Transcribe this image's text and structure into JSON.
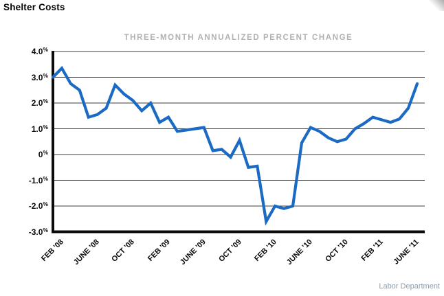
{
  "page": {
    "title": "Shelter Costs",
    "source": "Labor Department"
  },
  "chart_data": {
    "type": "line",
    "title": "THREE-MONTH ANNUALIZED PERCENT CHANGE",
    "x": [
      "Feb '08",
      "Mar '08",
      "Apr '08",
      "May '08",
      "Jun '08",
      "Jul '08",
      "Aug '08",
      "Sep '08",
      "Oct '08",
      "Nov '08",
      "Dec '08",
      "Jan '09",
      "Feb '09",
      "Mar '09",
      "Apr '09",
      "May '09",
      "Jun '09",
      "Jul '09",
      "Aug '09",
      "Sep '09",
      "Oct '09",
      "Nov '09",
      "Dec '09",
      "Jan '10",
      "Feb '10",
      "Mar '10",
      "Apr '10",
      "May '10",
      "Jun '10",
      "Jul '10",
      "Aug '10",
      "Sep '10",
      "Oct '10",
      "Nov '10",
      "Dec '10",
      "Jan '11",
      "Feb '11",
      "Mar '11",
      "Apr '11",
      "May '11",
      "Jun '11",
      "Jul '11"
    ],
    "values": [
      3.0,
      3.35,
      2.75,
      2.5,
      1.45,
      1.55,
      1.8,
      2.7,
      2.35,
      2.1,
      1.7,
      2.0,
      1.25,
      1.45,
      0.9,
      0.95,
      1.0,
      1.05,
      0.15,
      0.2,
      -0.1,
      0.55,
      -0.5,
      -0.45,
      -2.6,
      -2.0,
      -2.1,
      -2.0,
      0.45,
      1.05,
      0.9,
      0.65,
      0.5,
      0.6,
      1.0,
      1.2,
      1.45,
      1.35,
      1.25,
      1.38,
      1.8,
      2.75
    ],
    "x_tick_labels": [
      "FEB '08",
      "JUNE '08",
      "OCT '08",
      "FEB '09",
      "JUNE '09",
      "OCT '09",
      "FEB '10",
      "JUNE '10",
      "OCT '10",
      "FEB '11",
      "JUNE '11"
    ],
    "x_tick_indices": [
      0,
      4,
      8,
      12,
      16,
      20,
      24,
      28,
      32,
      36,
      40
    ],
    "y_ticks": [
      {
        "value": 4,
        "label": "4.0"
      },
      {
        "value": 3,
        "label": "3.0"
      },
      {
        "value": 2,
        "label": "2.0"
      },
      {
        "value": 1,
        "label": "1.0"
      },
      {
        "value": 0,
        "label": "0"
      },
      {
        "value": -1,
        "label": "-1.0"
      },
      {
        "value": -2,
        "label": "-2.0"
      },
      {
        "value": -3,
        "label": "-3.0"
      }
    ],
    "y_unit": "%",
    "ylim": [
      -3,
      4
    ],
    "grid": true,
    "legend_position": "none",
    "line_color": "#1b6ac3",
    "axis_color": "#0b0b0b",
    "grid_color": "#3c3c3c",
    "title_color": "#b3b0b0",
    "source_color": "#8d9caa"
  }
}
